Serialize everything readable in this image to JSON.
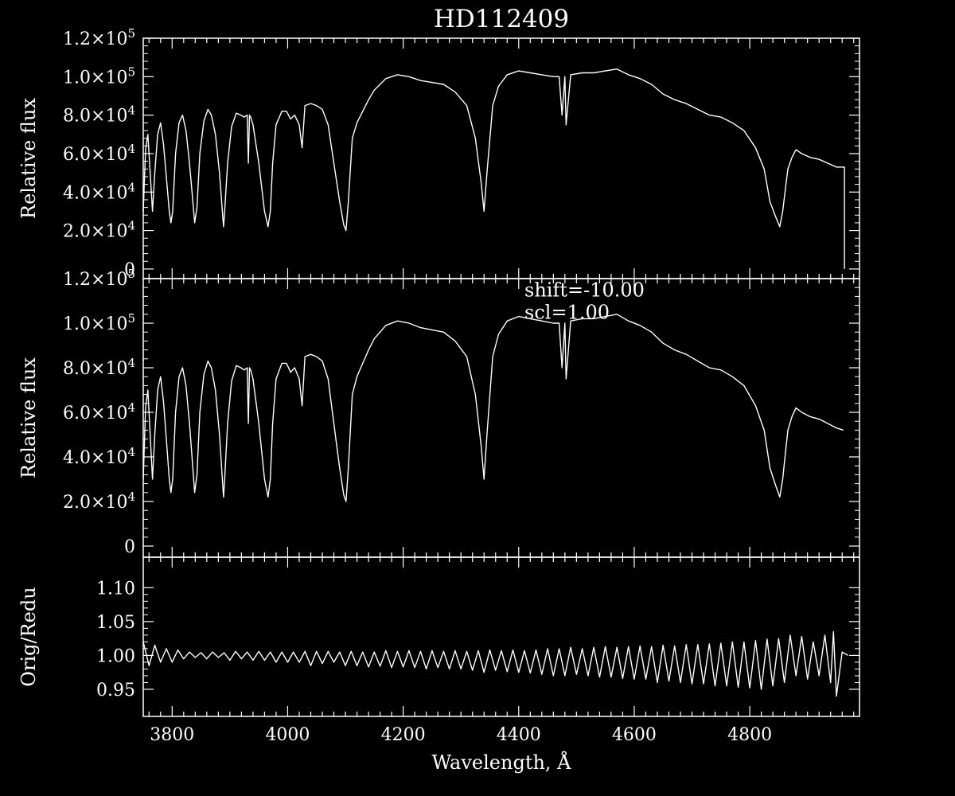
{
  "colors": {
    "background": "#000000",
    "foreground": "#ffffff"
  },
  "chart_data": {
    "type": "line",
    "title": "HD112409",
    "xlabel": "Wavelength, Å",
    "xlim": [
      3750,
      4990
    ],
    "x_ticks": [
      "3800",
      "4000",
      "4200",
      "4400",
      "4600",
      "4800"
    ],
    "grid": false,
    "panels": [
      {
        "id": "original",
        "ylabel": "Relative flux",
        "ylim": [
          -5000,
          120000
        ],
        "y_ticks": [
          {
            "value": 0,
            "mant": "0",
            "exp": ""
          },
          {
            "value": 20000,
            "mant": "2.0×10",
            "exp": "4"
          },
          {
            "value": 40000,
            "mant": "4.0×10",
            "exp": "4"
          },
          {
            "value": 60000,
            "mant": "6.0×10",
            "exp": "4"
          },
          {
            "value": 80000,
            "mant": "8.0×10",
            "exp": "4"
          },
          {
            "value": 100000,
            "mant": "1.0×10",
            "exp": "5"
          },
          {
            "value": 120000,
            "mant": "1.2×10",
            "exp": "5"
          }
        ],
        "annotations": [],
        "series": [
          {
            "x": [
              3750,
              3754,
              3758,
              3762,
              3766,
              3770,
              3775,
              3780,
              3785,
              3790,
              3795,
              3798,
              3801,
              3806,
              3812,
              3818,
              3824,
              3830,
              3835,
              3839,
              3843,
              3848,
              3855,
              3862,
              3868,
              3875,
              3882,
              3887,
              3889,
              3891,
              3896,
              3903,
              3911,
              3919,
              3925,
              3930,
              3932,
              3934,
              3936,
              3940,
              3950,
              3960,
              3966,
              3970,
              3974,
              3980,
              3990,
              3998,
              4005,
              4012,
              4020,
              4025,
              4030,
              4040,
              4050,
              4060,
              4070,
              4080,
              4090,
              4097,
              4101,
              4105,
              4112,
              4120,
              4130,
              4140,
              4150,
              4170,
              4190,
              4210,
              4230,
              4250,
              4270,
              4290,
              4310,
              4325,
              4335,
              4340,
              4345,
              4355,
              4365,
              4380,
              4400,
              4420,
              4440,
              4460,
              4470,
              4475,
              4480,
              4482,
              4490,
              4510,
              4530,
              4550,
              4570,
              4590,
              4610,
              4630,
              4650,
              4670,
              4690,
              4710,
              4730,
              4750,
              4770,
              4790,
              4810,
              4825,
              4835,
              4845,
              4852,
              4857,
              4861,
              4866,
              4873,
              4880,
              4890,
              4905,
              4920,
              4935,
              4950,
              4962,
              4964,
              4964
            ],
            "y": [
              30000,
              62000,
              70000,
              50000,
              30000,
              50000,
              70000,
              76000,
              65000,
              48000,
              30000,
              24000,
              30000,
              60000,
              76000,
              80000,
              72000,
              55000,
              38000,
              24000,
              32000,
              60000,
              77000,
              83000,
              80000,
              70000,
              50000,
              30000,
              22000,
              30000,
              55000,
              74000,
              81000,
              80000,
              79000,
              80000,
              55000,
              80000,
              79000,
              75000,
              55000,
              30000,
              22000,
              30000,
              55000,
              75000,
              82000,
              82000,
              78000,
              80000,
              75000,
              63000,
              85000,
              86000,
              85000,
              83000,
              75000,
              55000,
              35000,
              23000,
              20000,
              35000,
              68000,
              76000,
              82000,
              88000,
              93000,
              99000,
              101000,
              100000,
              98000,
              97000,
              96000,
              92000,
              85000,
              68000,
              45000,
              30000,
              50000,
              85000,
              95000,
              101000,
              103000,
              102000,
              101000,
              100000,
              100000,
              80000,
              100000,
              75000,
              101000,
              102000,
              102000,
              103000,
              104000,
              101000,
              99000,
              96000,
              91000,
              88000,
              86000,
              83000,
              80000,
              79000,
              76000,
              72000,
              63000,
              52000,
              35000,
              27000,
              22000,
              30000,
              40000,
              52000,
              58000,
              62000,
              60000,
              58000,
              57000,
              55000,
              53000,
              53000,
              53000,
              0
            ]
          }
        ]
      },
      {
        "id": "shifted",
        "ylabel": "Relative flux",
        "ylim": [
          -5000,
          120000
        ],
        "y_ticks": [
          {
            "value": 0,
            "mant": "0",
            "exp": ""
          },
          {
            "value": 20000,
            "mant": "2.0×10",
            "exp": "4"
          },
          {
            "value": 40000,
            "mant": "4.0×10",
            "exp": "4"
          },
          {
            "value": 60000,
            "mant": "6.0×10",
            "exp": "4"
          },
          {
            "value": 80000,
            "mant": "8.0×10",
            "exp": "4"
          },
          {
            "value": 100000,
            "mant": "1.0×10",
            "exp": "5"
          },
          {
            "value": 120000,
            "mant": "1.2×10",
            "exp": "5"
          }
        ],
        "annotations": [
          {
            "text": "shift=-10.00",
            "x": 4410,
            "y": 112000
          },
          {
            "text": "scl=1.00",
            "x": 4410,
            "y": 102000
          }
        ],
        "series": [
          {
            "x": [
              3750,
              3754,
              3758,
              3762,
              3766,
              3770,
              3775,
              3780,
              3785,
              3790,
              3795,
              3798,
              3801,
              3806,
              3812,
              3818,
              3824,
              3830,
              3835,
              3839,
              3843,
              3848,
              3855,
              3862,
              3868,
              3875,
              3882,
              3887,
              3889,
              3891,
              3896,
              3903,
              3911,
              3919,
              3925,
              3930,
              3932,
              3934,
              3936,
              3940,
              3950,
              3960,
              3966,
              3970,
              3974,
              3980,
              3990,
              3998,
              4005,
              4012,
              4020,
              4025,
              4030,
              4040,
              4050,
              4060,
              4070,
              4080,
              4090,
              4097,
              4101,
              4105,
              4112,
              4120,
              4130,
              4140,
              4150,
              4170,
              4190,
              4210,
              4230,
              4250,
              4270,
              4290,
              4310,
              4325,
              4335,
              4340,
              4345,
              4355,
              4365,
              4380,
              4400,
              4420,
              4440,
              4460,
              4470,
              4475,
              4480,
              4482,
              4490,
              4510,
              4530,
              4550,
              4570,
              4590,
              4610,
              4630,
              4650,
              4670,
              4690,
              4710,
              4730,
              4750,
              4770,
              4790,
              4810,
              4825,
              4835,
              4845,
              4852,
              4857,
              4861,
              4866,
              4873,
              4880,
              4890,
              4905,
              4920,
              4935,
              4950,
              4962
            ],
            "y": [
              30000,
              62000,
              70000,
              50000,
              30000,
              50000,
              70000,
              76000,
              65000,
              48000,
              30000,
              24000,
              30000,
              60000,
              76000,
              80000,
              72000,
              55000,
              38000,
              24000,
              32000,
              60000,
              77000,
              83000,
              80000,
              70000,
              50000,
              30000,
              22000,
              30000,
              55000,
              74000,
              81000,
              80000,
              79000,
              80000,
              55000,
              80000,
              79000,
              75000,
              55000,
              30000,
              22000,
              30000,
              55000,
              75000,
              82000,
              82000,
              78000,
              80000,
              75000,
              63000,
              85000,
              86000,
              85000,
              83000,
              75000,
              55000,
              35000,
              23000,
              20000,
              35000,
              68000,
              76000,
              82000,
              88000,
              93000,
              99000,
              101000,
              100000,
              98000,
              97000,
              96000,
              92000,
              85000,
              68000,
              45000,
              30000,
              50000,
              85000,
              95000,
              101000,
              103000,
              102000,
              101000,
              100000,
              100000,
              80000,
              100000,
              75000,
              101000,
              102000,
              102000,
              103000,
              104000,
              101000,
              99000,
              96000,
              91000,
              88000,
              86000,
              83000,
              80000,
              79000,
              76000,
              72000,
              63000,
              52000,
              35000,
              27000,
              22000,
              30000,
              40000,
              52000,
              58000,
              62000,
              60000,
              58000,
              57000,
              55000,
              53000,
              52000
            ]
          }
        ]
      },
      {
        "id": "ratio",
        "ylabel": "Orig/Redu",
        "ylim": [
          0.91,
          1.145
        ],
        "y_ticks": [
          {
            "value": 0.95,
            "mant": "0.95",
            "exp": ""
          },
          {
            "value": 1.0,
            "mant": "1.00",
            "exp": ""
          },
          {
            "value": 1.05,
            "mant": "1.05",
            "exp": ""
          },
          {
            "value": 1.1,
            "mant": "1.10",
            "exp": ""
          }
        ],
        "annotations": [],
        "series": [
          {
            "x": [
              3750,
              3760,
              3770,
              3780,
              3790,
              3800,
              3810,
              3820,
              3830,
              3840,
              3850,
              3860,
              3870,
              3880,
              3890,
              3900,
              3910,
              3920,
              3930,
              3940,
              3950,
              3960,
              3970,
              3980,
              3990,
              4000,
              4010,
              4020,
              4030,
              4040,
              4050,
              4060,
              4070,
              4080,
              4090,
              4100,
              4110,
              4120,
              4130,
              4140,
              4150,
              4160,
              4170,
              4180,
              4190,
              4200,
              4210,
              4220,
              4230,
              4240,
              4250,
              4260,
              4270,
              4280,
              4290,
              4300,
              4310,
              4320,
              4330,
              4340,
              4350,
              4360,
              4370,
              4380,
              4390,
              4400,
              4410,
              4420,
              4430,
              4440,
              4450,
              4460,
              4470,
              4480,
              4490,
              4500,
              4510,
              4520,
              4530,
              4540,
              4550,
              4560,
              4570,
              4580,
              4590,
              4600,
              4610,
              4620,
              4630,
              4640,
              4650,
              4660,
              4670,
              4680,
              4690,
              4700,
              4710,
              4720,
              4730,
              4740,
              4750,
              4760,
              4770,
              4780,
              4790,
              4800,
              4810,
              4820,
              4830,
              4840,
              4850,
              4860,
              4870,
              4880,
              4890,
              4900,
              4910,
              4920,
              4930,
              4940,
              4945,
              4950,
              4960,
              4970
            ],
            "y": [
              1.02,
              0.985,
              1.015,
              0.99,
              1.01,
              0.99,
              1.008,
              0.995,
              1.005,
              0.997,
              1.004,
              0.995,
              1.005,
              0.997,
              1.004,
              0.993,
              1.006,
              0.995,
              1.005,
              0.993,
              1.006,
              0.993,
              1.005,
              0.99,
              1.005,
              0.99,
              1.005,
              0.99,
              1.006,
              0.985,
              1.006,
              0.988,
              1.006,
              0.99,
              1.005,
              0.985,
              1.006,
              0.985,
              1.005,
              0.983,
              1.005,
              0.984,
              1.007,
              0.982,
              1.006,
              0.983,
              1.007,
              0.982,
              1.006,
              0.98,
              1.007,
              0.982,
              1.006,
              0.98,
              1.007,
              0.98,
              1.006,
              0.978,
              1.007,
              0.975,
              1.008,
              0.978,
              1.007,
              0.976,
              1.008,
              0.975,
              1.007,
              0.974,
              1.008,
              0.972,
              1.01,
              0.97,
              1.01,
              0.97,
              1.012,
              0.972,
              1.01,
              0.97,
              1.012,
              0.968,
              1.013,
              0.968,
              1.012,
              0.966,
              1.013,
              0.965,
              1.014,
              0.965,
              1.013,
              0.96,
              1.015,
              0.962,
              1.014,
              0.96,
              1.016,
              0.958,
              1.016,
              0.958,
              1.017,
              0.955,
              1.018,
              0.955,
              1.02,
              0.953,
              1.02,
              0.952,
              1.022,
              0.95,
              1.024,
              0.955,
              1.025,
              0.96,
              1.03,
              0.97,
              1.028,
              0.965,
              1.02,
              0.97,
              1.03,
              0.96,
              1.035,
              0.94,
              1.005,
              1.0
            ]
          }
        ]
      }
    ]
  }
}
